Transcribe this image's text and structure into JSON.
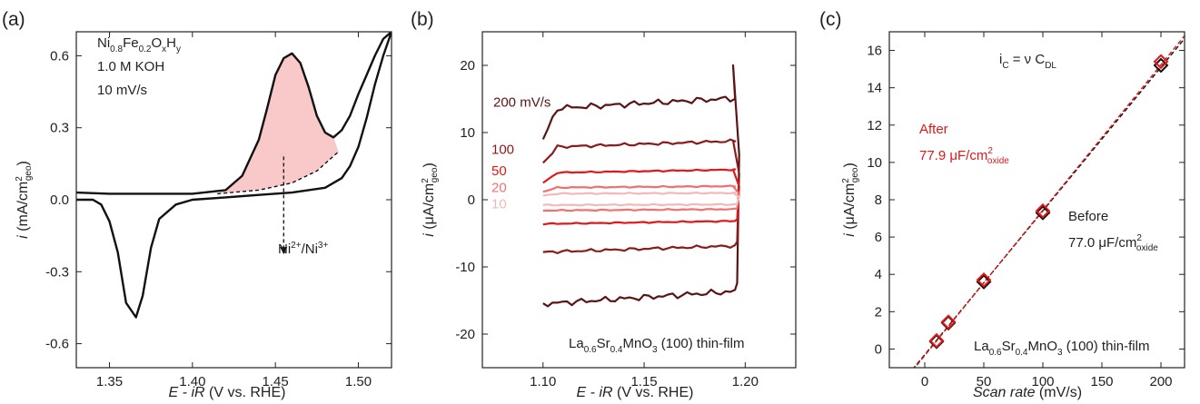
{
  "colors": {
    "dark_red": "#5a1414",
    "red1": "#8b1a1a",
    "red2": "#e01818",
    "red3": "#f07070",
    "red4": "#f5b8b8",
    "shade": "#f9c8c8",
    "black": "#111111"
  },
  "chart_data": [
    {
      "panel": "(a)",
      "type": "line",
      "xlabel_italic": "E - iR",
      "xlabel_rest": " (V vs. RHE)",
      "ylabel_i": "i",
      "ylabel_unit": " (mA/cm",
      "ylabel_sup": "2",
      "ylabel_sub": "geo",
      "ylabel_close": ")",
      "xlim": [
        1.33,
        1.52
      ],
      "ylim": [
        -0.7,
        0.7
      ],
      "xticks": [
        1.35,
        1.4,
        1.45,
        1.5
      ],
      "xtick_labels": [
        "1.35",
        "1.40",
        "1.45",
        "1.50"
      ],
      "yticks": [
        -0.6,
        -0.3,
        0.0,
        0.3,
        0.6
      ],
      "ytick_labels": [
        "-0.6",
        "-0.3",
        "0.0",
        "0.3",
        "0.6"
      ],
      "legend": {
        "line1_parts": [
          "Ni",
          "0.8",
          "Fe",
          "0.2",
          "O",
          "x",
          "H",
          "y"
        ],
        "line2": "1.0 M KOH",
        "line3": "10 mV/s"
      },
      "annotation": {
        "main": "Ni",
        "sup1": "2+",
        "mid": "/Ni",
        "sup2": "3+"
      },
      "series": [
        {
          "name": "",
          "x": [
            1.33,
            1.35,
            1.4,
            1.42,
            1.43,
            1.44,
            1.445,
            1.45,
            1.455,
            1.46,
            1.465,
            1.47,
            1.475,
            1.48,
            1.485,
            1.49,
            1.495,
            1.5,
            1.505,
            1.51,
            1.515,
            1.52
          ],
          "y": [
            0.03,
            0.025,
            0.025,
            0.04,
            0.1,
            0.25,
            0.38,
            0.52,
            0.59,
            0.61,
            0.57,
            0.47,
            0.35,
            0.28,
            0.26,
            0.29,
            0.35,
            0.44,
            0.52,
            0.6,
            0.67,
            0.7
          ]
        },
        {
          "name": "",
          "x": [
            1.52,
            1.515,
            1.51,
            1.505,
            1.5,
            1.495,
            1.49,
            1.48,
            1.46,
            1.44,
            1.42,
            1.4,
            1.39,
            1.38,
            1.375,
            1.37,
            1.366,
            1.36,
            1.355,
            1.35,
            1.345,
            1.34,
            1.33
          ],
          "y": [
            0.7,
            0.6,
            0.48,
            0.34,
            0.22,
            0.14,
            0.09,
            0.05,
            0.03,
            0.02,
            0.01,
            0.0,
            -0.02,
            -0.08,
            -0.2,
            -0.4,
            -0.49,
            -0.43,
            -0.22,
            -0.09,
            -0.02,
            0.0,
            0.0
          ]
        }
      ],
      "baseline": {
        "x": [
          1.415,
          1.44,
          1.46,
          1.475,
          1.488
        ],
        "y": [
          0.025,
          0.04,
          0.07,
          0.12,
          0.2
        ]
      }
    },
    {
      "panel": "(b)",
      "type": "line",
      "xlabel_italic": "E - iR",
      "xlabel_rest": " (V vs. RHE)",
      "ylabel_i": "i",
      "ylabel_unit": " (μA/cm",
      "ylabel_sup": "2",
      "ylabel_sub": "geo",
      "ylabel_close": ")",
      "xlim": [
        1.07,
        1.225
      ],
      "ylim": [
        -25,
        25
      ],
      "xticks": [
        1.1,
        1.15,
        1.2
      ],
      "xtick_labels": [
        "1.10",
        "1.15",
        "1.20"
      ],
      "yticks": [
        -20,
        -10,
        0,
        10,
        20
      ],
      "ytick_labels": [
        "-20",
        "-10",
        "0",
        "10",
        "20"
      ],
      "footer_parts": [
        "La",
        "0.6",
        "Sr",
        "0.4",
        "MnO",
        "3",
        " (100) thin-film"
      ],
      "series": [
        {
          "name": "200 mV/s",
          "upper": 13.5,
          "lower": -15.5,
          "peak": 20,
          "low_start": 9
        },
        {
          "name": "100",
          "upper": 7.8,
          "lower": -7.8,
          "peak": 8.8,
          "low_start": 5.5
        },
        {
          "name": "50",
          "upper": 4.0,
          "lower": -3.6,
          "peak": 4.5,
          "low_start": 2.5
        },
        {
          "name": "20",
          "upper": 1.8,
          "lower": -1.6,
          "peak": 2.0,
          "low_start": 1.2
        },
        {
          "name": "10",
          "upper": 0.9,
          "lower": -0.8,
          "peak": 1.0,
          "low_start": 0.6
        }
      ]
    },
    {
      "panel": "(c)",
      "type": "scatter",
      "xlabel": "Scan rate (mV/s)",
      "xlabel_italic": "Scan rate",
      "xlabel_rest": " (mV/s)",
      "ylabel_i": "i",
      "ylabel_unit": " (μA/cm",
      "ylabel_sup": "2",
      "ylabel_sub": "geo",
      "ylabel_close": ")",
      "xlim": [
        -30,
        220
      ],
      "ylim": [
        -1,
        17
      ],
      "xticks": [
        0,
        50,
        100,
        150,
        200
      ],
      "xtick_labels": [
        "0",
        "50",
        "100",
        "150",
        "200"
      ],
      "yticks": [
        0,
        2,
        4,
        6,
        8,
        10,
        12,
        14,
        16
      ],
      "ytick_labels": [
        "0",
        "2",
        "4",
        "6",
        "8",
        "10",
        "12",
        "14",
        "16"
      ],
      "equation": {
        "i": "i",
        "isub": "C",
        "mid": " = ν C",
        "csub": "DL"
      },
      "after": {
        "title": "After",
        "value": "77.9 μF/cm",
        "sup": "2",
        "sub": "oxide"
      },
      "before": {
        "title": "Before",
        "value": "77.0 μF/cm",
        "sup": "2",
        "sub": "oxide"
      },
      "footer_parts": [
        "La",
        "0.6",
        "Sr",
        "0.4",
        "MnO",
        "3",
        " (100) thin-film"
      ],
      "x": [
        10,
        20,
        50,
        100,
        200
      ],
      "series": [
        {
          "name": "Before",
          "values": [
            0.4,
            1.4,
            3.6,
            7.3,
            15.2
          ]
        },
        {
          "name": "After",
          "values": [
            0.45,
            1.45,
            3.7,
            7.4,
            15.4
          ]
        }
      ],
      "fit_lines": [
        {
          "slope": 0.077,
          "intercept": -0.3
        },
        {
          "slope": 0.0779,
          "intercept": -0.35
        }
      ]
    }
  ]
}
